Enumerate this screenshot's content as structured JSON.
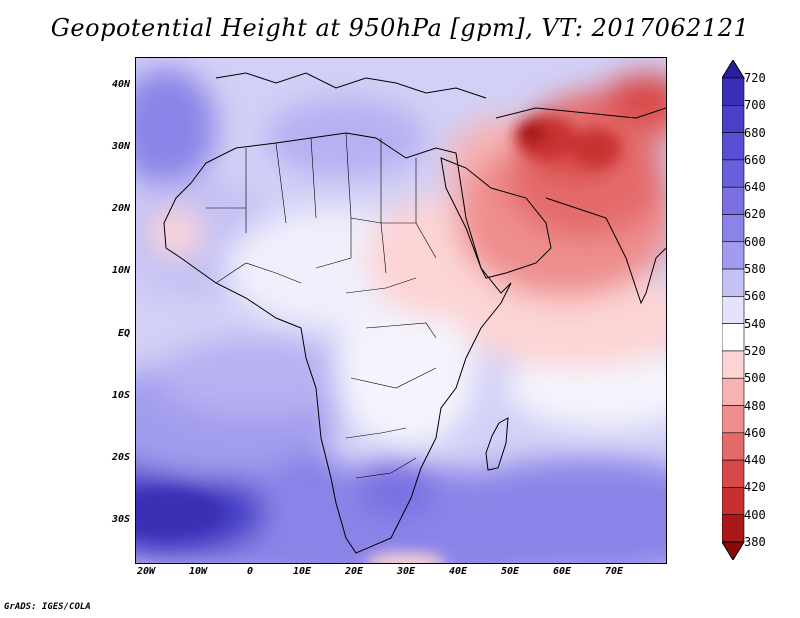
{
  "title": "Geopotential Height at 950hPa [gpm], VT: 2017062121",
  "footer": "GrADS: IGES/COLA",
  "lat_labels": [
    "40N",
    "30N",
    "20N",
    "10N",
    "EQ",
    "10S",
    "20S",
    "30S"
  ],
  "lon_labels": [
    "20W",
    "10W",
    "0",
    "10E",
    "20E",
    "30E",
    "40E",
    "50E",
    "60E",
    "70E"
  ],
  "colorbar": {
    "levels": [
      "720",
      "700",
      "680",
      "660",
      "640",
      "620",
      "600",
      "580",
      "560",
      "540",
      "520",
      "500",
      "480",
      "460",
      "440",
      "420",
      "400",
      "380"
    ],
    "colors": [
      "#2a1fa0",
      "#3a2fb4",
      "#4a3fc6",
      "#5a4fd2",
      "#6a5fdc",
      "#7a70e2",
      "#8b84e8",
      "#a29cee",
      "#c4c1f4",
      "#e4e3fb",
      "#ffffff",
      "#fcd4d4",
      "#f7b2b2",
      "#ee8e8e",
      "#e46a6a",
      "#d84848",
      "#c83030",
      "#a81818",
      "#8a0a0a"
    ]
  },
  "map": {
    "lon_range": [
      -22,
      80
    ],
    "lat_range": [
      -37,
      45
    ]
  }
}
